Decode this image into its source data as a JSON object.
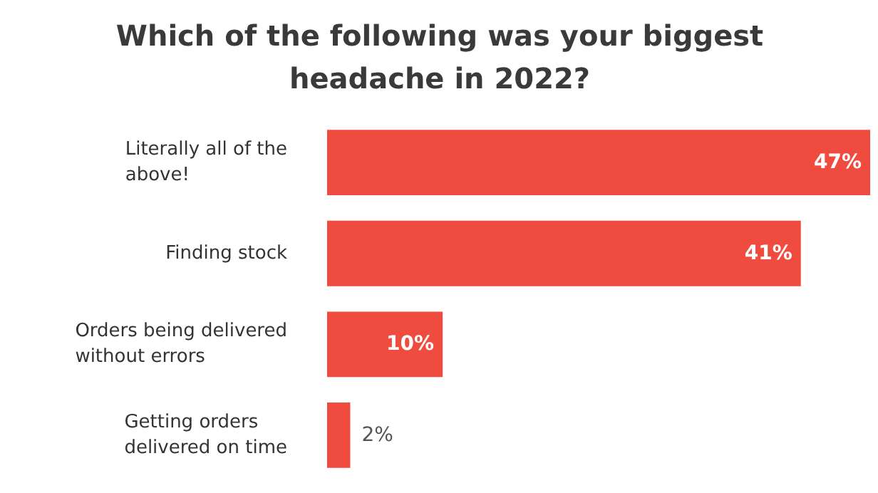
{
  "chart_data": {
    "type": "bar",
    "orientation": "horizontal",
    "title": "Which of the following was your biggest\nheadache in 2022?",
    "categories": [
      "Literally all of the\nabove!",
      "Finding stock",
      "Orders being delivered\nwithout errors",
      "Getting orders\ndelivered on time"
    ],
    "values": [
      47,
      41,
      10,
      2
    ],
    "color": "#f04b3f",
    "value_labels": [
      "47%",
      "41%",
      "10%",
      "2%"
    ],
    "grid": false
  }
}
